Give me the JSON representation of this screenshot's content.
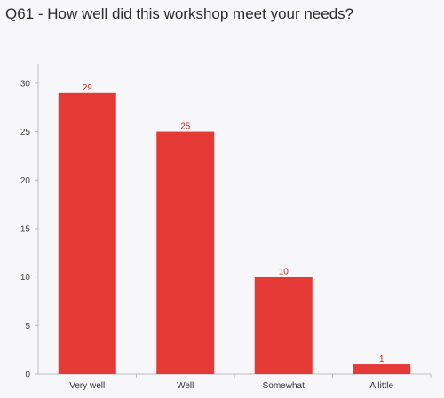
{
  "title": "Q61 - How well did this workshop meet your needs?",
  "colors": {
    "bar": "#e53935",
    "axis": "#bdbdbd",
    "label": "#c62828"
  },
  "chart_data": {
    "type": "bar",
    "title": "Q61 - How well did this workshop meet your needs?",
    "categories": [
      "Very well",
      "Well",
      "Somewhat",
      "A little"
    ],
    "values": [
      29,
      25,
      10,
      1
    ],
    "yticks": [
      "0",
      "5",
      "10",
      "15",
      "20",
      "25",
      "30"
    ],
    "ylim": [
      0,
      32
    ],
    "xlabel": "",
    "ylabel": "",
    "grid": false
  }
}
